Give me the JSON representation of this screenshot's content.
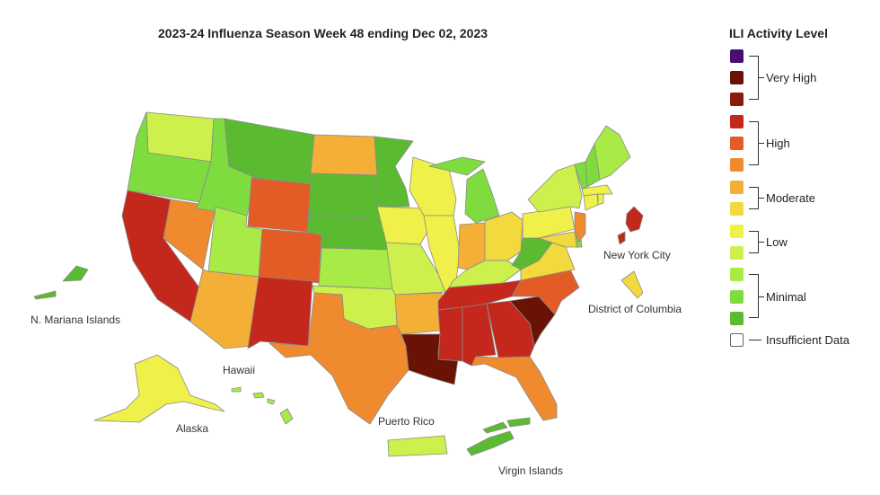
{
  "title": "2023-24 Influenza Season Week 48 ending Dec 02, 2023",
  "legend": {
    "title": "ILI Activity Level",
    "swatch_colors": [
      "#4a0f6e",
      "#6a1206",
      "#8a1a0c",
      "#c4271b",
      "#e35c26",
      "#ef8a2f",
      "#f4b036",
      "#f2d93d",
      "#f0f04a",
      "#cdf04c",
      "#a8ea46",
      "#7fdc3f",
      "#5bbb30"
    ],
    "groups": [
      {
        "key": "very_high",
        "label": "Very High"
      },
      {
        "key": "high",
        "label": "High"
      },
      {
        "key": "moderate",
        "label": "Moderate"
      },
      {
        "key": "low",
        "label": "Low"
      },
      {
        "key": "minimal",
        "label": "Minimal"
      }
    ],
    "insufficient": {
      "label": "Insufficient Data",
      "color": "#ffffff"
    }
  },
  "map_labels": {
    "nyc": "New York City",
    "dc": "District of Columbia",
    "nmi": "N. Mariana Islands",
    "hawaii": "Hawaii",
    "alaska": "Alaska",
    "pr": "Puerto Rico",
    "vi": "Virgin Islands"
  },
  "regions": [
    {
      "name": "Washington",
      "level": 9
    },
    {
      "name": "Oregon",
      "level": 11
    },
    {
      "name": "California",
      "level": 3
    },
    {
      "name": "Nevada",
      "level": 5
    },
    {
      "name": "Idaho",
      "level": 11
    },
    {
      "name": "Montana",
      "level": 12
    },
    {
      "name": "Wyoming",
      "level": 4
    },
    {
      "name": "Utah",
      "level": 10
    },
    {
      "name": "Arizona",
      "level": 6
    },
    {
      "name": "Colorado",
      "level": 4
    },
    {
      "name": "New Mexico",
      "level": 3
    },
    {
      "name": "North Dakota",
      "level": 6
    },
    {
      "name": "South Dakota",
      "level": 12
    },
    {
      "name": "Nebraska",
      "level": 12
    },
    {
      "name": "Kansas",
      "level": 10
    },
    {
      "name": "Oklahoma",
      "level": 9
    },
    {
      "name": "Texas",
      "level": 5
    },
    {
      "name": "Minnesota",
      "level": 12
    },
    {
      "name": "Iowa",
      "level": 8
    },
    {
      "name": "Missouri",
      "level": 9
    },
    {
      "name": "Arkansas",
      "level": 6
    },
    {
      "name": "Louisiana",
      "level": 1
    },
    {
      "name": "Wisconsin",
      "level": 8
    },
    {
      "name": "Illinois",
      "level": 8
    },
    {
      "name": "Michigan",
      "level": 11
    },
    {
      "name": "Indiana",
      "level": 6
    },
    {
      "name": "Ohio",
      "level": 7
    },
    {
      "name": "Kentucky",
      "level": 9
    },
    {
      "name": "Tennessee",
      "level": 3
    },
    {
      "name": "Mississippi",
      "level": 3
    },
    {
      "name": "Alabama",
      "level": 3
    },
    {
      "name": "Georgia",
      "level": 3
    },
    {
      "name": "Florida",
      "level": 5
    },
    {
      "name": "South Carolina",
      "level": 1
    },
    {
      "name": "North Carolina",
      "level": 4
    },
    {
      "name": "Virginia",
      "level": 7
    },
    {
      "name": "West Virginia",
      "level": 12
    },
    {
      "name": "Pennsylvania",
      "level": 8
    },
    {
      "name": "New York",
      "level": 9
    },
    {
      "name": "Maryland",
      "level": 7
    },
    {
      "name": "Delaware",
      "level": 11
    },
    {
      "name": "New Jersey",
      "level": 5
    },
    {
      "name": "Connecticut",
      "level": 8
    },
    {
      "name": "Rhode Island",
      "level": 8
    },
    {
      "name": "Massachusetts",
      "level": 8
    },
    {
      "name": "Vermont",
      "level": 11
    },
    {
      "name": "New Hampshire",
      "level": 11
    },
    {
      "name": "Maine",
      "level": 10
    },
    {
      "name": "Alaska",
      "level": 8
    },
    {
      "name": "Hawaii",
      "level": 10
    },
    {
      "name": "Puerto Rico",
      "level": 9
    },
    {
      "name": "Virgin Islands",
      "level": 12
    },
    {
      "name": "N. Mariana Islands",
      "level": 12
    },
    {
      "name": "New York City",
      "level": 3
    },
    {
      "name": "District of Columbia",
      "level": 7
    }
  ]
}
